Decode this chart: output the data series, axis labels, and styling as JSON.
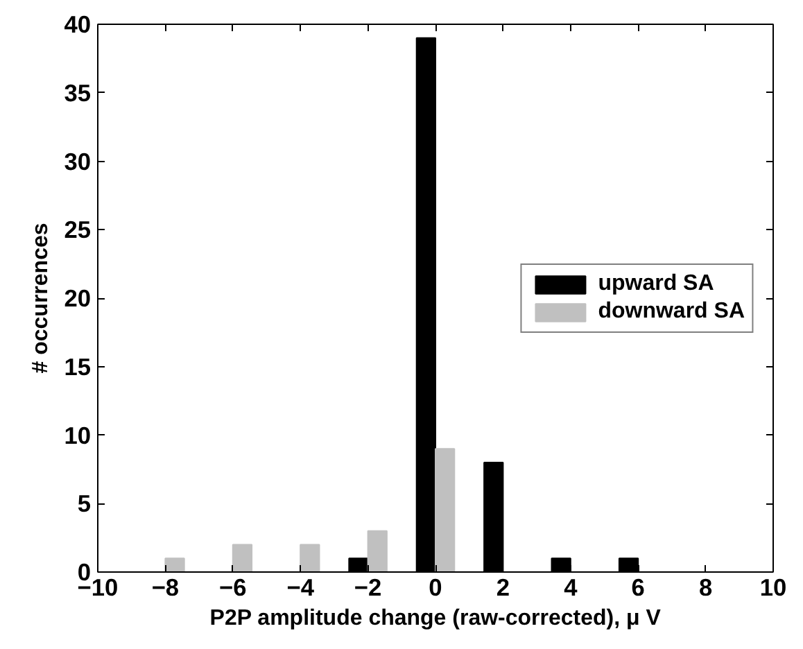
{
  "chart_data": {
    "type": "bar",
    "xlabel": "P2P amplitude change (raw-corrected), μ V",
    "ylabel": "# occurrences",
    "x": [
      -10,
      -8,
      -6,
      -4,
      -2,
      0,
      2,
      4,
      6,
      8,
      10
    ],
    "series": [
      {
        "name": "upward SA",
        "color": "#000000",
        "values": [
          0,
          0,
          0,
          0,
          1,
          39,
          8,
          1,
          1,
          0,
          0
        ]
      },
      {
        "name": "downward SA",
        "color": "#c0c0c0",
        "values": [
          0,
          1,
          2,
          2,
          3,
          9,
          0,
          0,
          0,
          0,
          0
        ]
      }
    ],
    "xlim": [
      -10,
      10
    ],
    "xticks": [
      -10,
      -8,
      -6,
      -4,
      -2,
      0,
      2,
      4,
      6,
      8,
      10
    ],
    "ylim": [
      0,
      40
    ],
    "yticks": [
      0,
      5,
      10,
      15,
      20,
      25,
      30,
      35,
      40
    ],
    "grid": false,
    "legend": "right"
  }
}
